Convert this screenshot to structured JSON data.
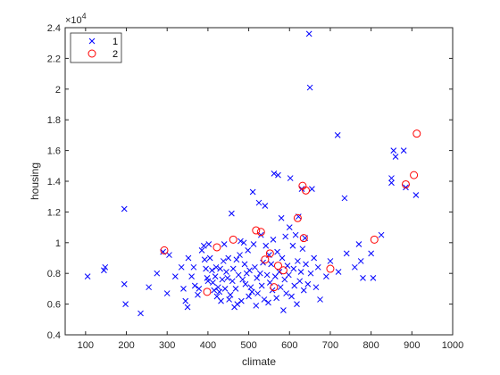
{
  "chart_data": {
    "type": "scatter",
    "xlabel": "climate",
    "ylabel": "housing",
    "exponent_label": "×10",
    "exponent_power": "4",
    "xlim": [
      50,
      1000
    ],
    "ylim": [
      4000,
      24000
    ],
    "x_ticks": [
      100,
      200,
      300,
      400,
      500,
      600,
      700,
      800,
      900,
      1000
    ],
    "x_tick_labels": [
      "100",
      "200",
      "300",
      "400",
      "500",
      "600",
      "700",
      "800",
      "900",
      "1000"
    ],
    "y_ticks": [
      4000,
      6000,
      8000,
      10000,
      12000,
      14000,
      16000,
      18000,
      20000,
      22000,
      24000
    ],
    "y_tick_labels": [
      "0.4",
      "0.6",
      "0.8",
      "1",
      "1.2",
      "1.4",
      "1.6",
      "1.8",
      "2",
      "2.2",
      "2.4"
    ],
    "grid": false,
    "legend_position": "top-left",
    "colors": {
      "series1": "#0000ff",
      "series2": "#ff0000",
      "axis": "#262626"
    },
    "series": [
      {
        "name": "1",
        "marker": "x",
        "points": [
          [
            105,
            7800
          ],
          [
            145,
            8200
          ],
          [
            148,
            8400
          ],
          [
            195,
            12200
          ],
          [
            195,
            7300
          ],
          [
            198,
            6000
          ],
          [
            235,
            5400
          ],
          [
            255,
            7100
          ],
          [
            275,
            8000
          ],
          [
            290,
            9400
          ],
          [
            300,
            6700
          ],
          [
            305,
            9200
          ],
          [
            320,
            7800
          ],
          [
            335,
            8400
          ],
          [
            340,
            7000
          ],
          [
            345,
            6200
          ],
          [
            350,
            5800
          ],
          [
            352,
            9000
          ],
          [
            360,
            7800
          ],
          [
            365,
            8400
          ],
          [
            368,
            7200
          ],
          [
            375,
            6600
          ],
          [
            378,
            7000
          ],
          [
            385,
            9500
          ],
          [
            390,
            9800
          ],
          [
            392,
            8900
          ],
          [
            395,
            8300
          ],
          [
            398,
            7700
          ],
          [
            400,
            7500
          ],
          [
            402,
            9900
          ],
          [
            405,
            9000
          ],
          [
            410,
            8200
          ],
          [
            412,
            7400
          ],
          [
            415,
            6900
          ],
          [
            418,
            7800
          ],
          [
            420,
            8400
          ],
          [
            422,
            6500
          ],
          [
            425,
            7100
          ],
          [
            428,
            6800
          ],
          [
            430,
            8300
          ],
          [
            432,
            6200
          ],
          [
            435,
            7600
          ],
          [
            438,
            8800
          ],
          [
            440,
            9900
          ],
          [
            442,
            7000
          ],
          [
            445,
            8100
          ],
          [
            448,
            7700
          ],
          [
            450,
            9000
          ],
          [
            452,
            6300
          ],
          [
            455,
            6600
          ],
          [
            458,
            11900
          ],
          [
            460,
            7500
          ],
          [
            462,
            8300
          ],
          [
            465,
            5800
          ],
          [
            468,
            7000
          ],
          [
            470,
            8900
          ],
          [
            472,
            6000
          ],
          [
            475,
            7900
          ],
          [
            478,
            9200
          ],
          [
            480,
            10100
          ],
          [
            482,
            6200
          ],
          [
            485,
            7600
          ],
          [
            488,
            10000
          ],
          [
            490,
            8600
          ],
          [
            492,
            7300
          ],
          [
            495,
            8000
          ],
          [
            498,
            9500
          ],
          [
            500,
            6500
          ],
          [
            502,
            8200
          ],
          [
            505,
            7100
          ],
          [
            508,
            6800
          ],
          [
            510,
            13300
          ],
          [
            512,
            9900
          ],
          [
            515,
            8400
          ],
          [
            518,
            5900
          ],
          [
            520,
            7700
          ],
          [
            522,
            6700
          ],
          [
            525,
            12600
          ],
          [
            528,
            8000
          ],
          [
            530,
            10500
          ],
          [
            532,
            7200
          ],
          [
            535,
            8700
          ],
          [
            538,
            6300
          ],
          [
            540,
            12400
          ],
          [
            542,
            9800
          ],
          [
            545,
            7900
          ],
          [
            548,
            6100
          ],
          [
            550,
            9200
          ],
          [
            552,
            7400
          ],
          [
            555,
            8600
          ],
          [
            558,
            6900
          ],
          [
            560,
            10200
          ],
          [
            562,
            14500
          ],
          [
            565,
            7800
          ],
          [
            568,
            6400
          ],
          [
            570,
            9400
          ],
          [
            572,
            14400
          ],
          [
            575,
            8100
          ],
          [
            578,
            7100
          ],
          [
            580,
            11600
          ],
          [
            582,
            9000
          ],
          [
            585,
            5600
          ],
          [
            588,
            7600
          ],
          [
            590,
            10400
          ],
          [
            592,
            6700
          ],
          [
            595,
            8500
          ],
          [
            598,
            7900
          ],
          [
            600,
            11000
          ],
          [
            602,
            14200
          ],
          [
            605,
            6500
          ],
          [
            608,
            9800
          ],
          [
            610,
            8300
          ],
          [
            612,
            7200
          ],
          [
            615,
            10500
          ],
          [
            618,
            6000
          ],
          [
            620,
            8800
          ],
          [
            622,
            11700
          ],
          [
            625,
            7500
          ],
          [
            628,
            8100
          ],
          [
            630,
            13500
          ],
          [
            632,
            9600
          ],
          [
            635,
            6900
          ],
          [
            638,
            10300
          ],
          [
            640,
            8600
          ],
          [
            645,
            7300
          ],
          [
            648,
            23600
          ],
          [
            650,
            20100
          ],
          [
            652,
            8000
          ],
          [
            655,
            13500
          ],
          [
            660,
            9000
          ],
          [
            665,
            7100
          ],
          [
            670,
            8400
          ],
          [
            675,
            6300
          ],
          [
            690,
            7800
          ],
          [
            700,
            8800
          ],
          [
            720,
            8100
          ],
          [
            718,
            17000
          ],
          [
            735,
            12900
          ],
          [
            740,
            9300
          ],
          [
            760,
            8400
          ],
          [
            770,
            9900
          ],
          [
            775,
            8800
          ],
          [
            780,
            7700
          ],
          [
            800,
            9300
          ],
          [
            805,
            7700
          ],
          [
            825,
            10500
          ],
          [
            850,
            13900
          ],
          [
            850,
            14200
          ],
          [
            855,
            16000
          ],
          [
            860,
            15600
          ],
          [
            880,
            16000
          ],
          [
            885,
            13600
          ],
          [
            910,
            13100
          ]
        ]
      },
      {
        "name": "2",
        "marker": "o",
        "points": [
          [
            293,
            9500
          ],
          [
            398,
            6800
          ],
          [
            422,
            9700
          ],
          [
            462,
            10200
          ],
          [
            518,
            10800
          ],
          [
            530,
            10700
          ],
          [
            540,
            8900
          ],
          [
            552,
            9300
          ],
          [
            562,
            7100
          ],
          [
            572,
            8500
          ],
          [
            585,
            8200
          ],
          [
            620,
            11600
          ],
          [
            632,
            13700
          ],
          [
            635,
            10300
          ],
          [
            640,
            13400
          ],
          [
            700,
            8300
          ],
          [
            808,
            10200
          ],
          [
            885,
            13800
          ],
          [
            905,
            14400
          ],
          [
            912,
            17100
          ]
        ]
      }
    ]
  }
}
